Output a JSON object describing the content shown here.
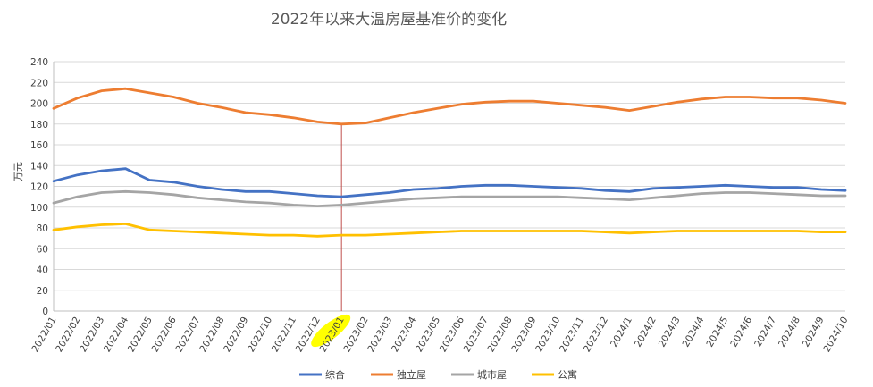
{
  "chart_data": {
    "type": "line",
    "title": "2022年以来大温房屋基准价的变化",
    "ylabel": "万元",
    "xlabel": "",
    "ylim": [
      0,
      240
    ],
    "ytick_step": 20,
    "grid": "horizontal",
    "legend_position": "bottom",
    "highlight_category": "2023/01",
    "categories": [
      "2022/01",
      "2022/02",
      "2022/03",
      "2022/04",
      "2022/05",
      "2022/06",
      "2022/07",
      "2022/08",
      "2022/09",
      "2022/10",
      "2022/11",
      "2022/12",
      "2023/01",
      "2023/02",
      "2023/03",
      "2023/04",
      "2023/05",
      "2023/06",
      "2023/07",
      "2023/08",
      "2023/09",
      "2023/10",
      "2023/11",
      "2023/12",
      "2024/1",
      "2024/2",
      "2024/3",
      "2024/4",
      "2024/5",
      "2024/6",
      "2024/7",
      "2024/8",
      "2024/9",
      "2024/10"
    ],
    "series": [
      {
        "name": "综合",
        "color": "#4472C4",
        "values": [
          125,
          131,
          135,
          137,
          126,
          124,
          120,
          117,
          115,
          115,
          113,
          111,
          110,
          112,
          114,
          117,
          118,
          120,
          121,
          121,
          120,
          119,
          118,
          116,
          115,
          118,
          119,
          120,
          121,
          120,
          119,
          119,
          117,
          116
        ]
      },
      {
        "name": "独立屋",
        "color": "#ED7D31",
        "values": [
          195,
          205,
          212,
          214,
          210,
          206,
          200,
          196,
          191,
          189,
          186,
          182,
          180,
          181,
          186,
          191,
          195,
          199,
          201,
          202,
          202,
          200,
          198,
          196,
          193,
          197,
          201,
          204,
          206,
          206,
          205,
          205,
          203,
          200
        ]
      },
      {
        "name": "城市屋",
        "color": "#A5A5A5",
        "values": [
          104,
          110,
          114,
          115,
          114,
          112,
          109,
          107,
          105,
          104,
          102,
          101,
          102,
          104,
          106,
          108,
          109,
          110,
          110,
          110,
          110,
          110,
          109,
          108,
          107,
          109,
          111,
          113,
          114,
          114,
          113,
          112,
          111,
          111
        ]
      },
      {
        "name": "公寓",
        "color": "#FFC000",
        "values": [
          78,
          81,
          83,
          84,
          78,
          77,
          76,
          75,
          74,
          73,
          73,
          72,
          73,
          73,
          74,
          75,
          76,
          77,
          77,
          77,
          77,
          77,
          77,
          76,
          75,
          76,
          77,
          77,
          77,
          77,
          77,
          77,
          76,
          76
        ]
      }
    ]
  }
}
